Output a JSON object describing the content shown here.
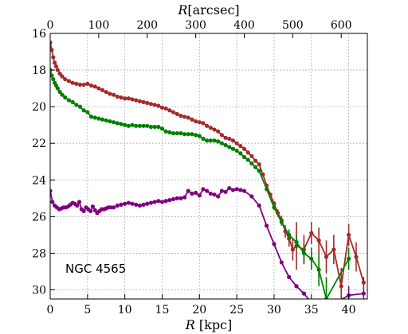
{
  "chart_data": {
    "type": "line",
    "annotation": "NGC 4565",
    "xlabel_main": "R",
    "xlabel_unit": "[kpc]",
    "xlabel_top_main": "R",
    "xlabel_top_unit": "[arcsec]",
    "xlim": [
      0,
      42.5
    ],
    "ylim": [
      30.5,
      16
    ],
    "y_inverted": true,
    "grid": true,
    "x_ticks": [
      0,
      5,
      10,
      15,
      20,
      25,
      30,
      35,
      40
    ],
    "x_tick_labels": [
      "0",
      "5",
      "10",
      "15",
      "20",
      "25",
      "30",
      "35",
      "40"
    ],
    "y_ticks": [
      16,
      18,
      20,
      22,
      24,
      26,
      28,
      30
    ],
    "y_tick_labels": [
      "16",
      "18",
      "20",
      "22",
      "24",
      "26",
      "28",
      "30"
    ],
    "top_ticks_kpc": [
      0,
      6.5,
      13,
      19.5,
      26,
      32.5,
      39
    ],
    "top_tick_labels": [
      "0",
      "100",
      "200",
      "300",
      "400",
      "500",
      "600"
    ],
    "series": [
      {
        "color": "#a52a2a",
        "x": [
          0.0,
          0.2,
          0.4,
          0.6,
          0.8,
          1.0,
          1.3,
          1.6,
          2.0,
          2.5,
          3.0,
          3.5,
          4.0,
          4.5,
          5.0,
          5.5,
          6.0,
          6.5,
          7.0,
          7.5,
          8.0,
          8.5,
          9.0,
          9.5,
          10.0,
          10.5,
          11.0,
          11.5,
          12.0,
          12.5,
          13.0,
          13.5,
          14.0,
          14.5,
          15.0,
          15.5,
          16.0,
          16.5,
          17.0,
          17.5,
          18.0,
          18.5,
          19.0,
          19.5,
          20.0,
          20.5,
          21.0,
          21.5,
          22.0,
          22.5,
          23.0,
          23.5,
          24.0,
          24.5,
          25.0,
          25.5,
          26.0,
          26.5,
          27.0,
          27.5,
          28.0,
          28.5,
          29.0,
          29.5,
          30.0,
          30.5,
          31.0,
          31.5,
          32.0,
          32.5,
          33.0,
          34.0,
          35.0,
          36.0,
          37.0,
          38.0,
          39.0,
          40.0,
          41.0,
          42.0
        ],
        "y": [
          16.5,
          16.9,
          17.3,
          17.6,
          17.8,
          18.0,
          18.2,
          18.35,
          18.5,
          18.6,
          18.7,
          18.75,
          18.8,
          18.8,
          18.75,
          18.85,
          18.9,
          19.0,
          19.1,
          19.2,
          19.3,
          19.35,
          19.45,
          19.5,
          19.55,
          19.55,
          19.6,
          19.65,
          19.7,
          19.75,
          19.8,
          19.85,
          19.9,
          19.95,
          20.05,
          20.1,
          20.2,
          20.3,
          20.4,
          20.5,
          20.55,
          20.6,
          20.7,
          20.8,
          20.85,
          20.9,
          21.05,
          21.15,
          21.25,
          21.35,
          21.55,
          21.7,
          21.75,
          21.85,
          22.0,
          22.15,
          22.3,
          22.5,
          22.7,
          22.95,
          23.15,
          23.7,
          24.3,
          24.8,
          25.3,
          25.8,
          26.2,
          26.8,
          27.2,
          27.8,
          27.6,
          27.8,
          26.9,
          27.3,
          28.2,
          27.8,
          29.8,
          27.0,
          28.2,
          29.6
        ],
        "yerr": [
          0,
          0,
          0,
          0,
          0,
          0,
          0,
          0,
          0,
          0,
          0,
          0,
          0,
          0,
          0,
          0,
          0,
          0,
          0,
          0,
          0,
          0,
          0,
          0,
          0,
          0,
          0,
          0,
          0,
          0,
          0,
          0,
          0,
          0,
          0,
          0,
          0,
          0,
          0,
          0,
          0,
          0,
          0,
          0,
          0,
          0,
          0,
          0,
          0,
          0,
          0,
          0,
          0,
          0,
          0,
          0,
          0,
          0,
          0,
          0,
          0,
          0.05,
          0.08,
          0.1,
          0.15,
          0.2,
          0.25,
          0.35,
          0.45,
          0.6,
          1.3,
          0.8,
          0.6,
          0.7,
          0.9,
          0.8,
          1.0,
          0.6,
          0.8,
          0.3
        ]
      },
      {
        "color": "#008000",
        "x": [
          0.0,
          0.2,
          0.4,
          0.6,
          0.8,
          1.0,
          1.3,
          1.6,
          2.0,
          2.5,
          3.0,
          3.5,
          4.0,
          4.5,
          5.0,
          5.5,
          6.0,
          6.5,
          7.0,
          7.5,
          8.0,
          8.5,
          9.0,
          9.5,
          10.0,
          10.5,
          11.0,
          11.5,
          12.0,
          12.5,
          13.0,
          13.5,
          14.0,
          14.5,
          15.0,
          15.5,
          16.0,
          16.5,
          17.0,
          17.5,
          18.0,
          18.5,
          19.0,
          19.5,
          20.0,
          20.5,
          21.0,
          21.5,
          22.0,
          22.5,
          23.0,
          23.5,
          24.0,
          24.5,
          25.0,
          25.5,
          26.0,
          26.5,
          27.0,
          27.5,
          28.0,
          29.0,
          30.0,
          31.0,
          32.0,
          33.0,
          34.0,
          35.0,
          36.0,
          37.0,
          40.0
        ],
        "y": [
          18.0,
          18.3,
          18.5,
          18.7,
          18.85,
          19.0,
          19.2,
          19.35,
          19.5,
          19.65,
          19.75,
          19.9,
          20.0,
          20.2,
          20.3,
          20.55,
          20.6,
          20.65,
          20.7,
          20.75,
          20.8,
          20.85,
          20.9,
          20.95,
          21.0,
          21.05,
          21.0,
          21.05,
          21.05,
          21.05,
          21.05,
          21.1,
          21.1,
          21.1,
          21.2,
          21.35,
          21.4,
          21.45,
          21.45,
          21.45,
          21.5,
          21.5,
          21.5,
          21.55,
          21.6,
          21.75,
          21.85,
          21.85,
          21.85,
          21.9,
          22.0,
          22.1,
          22.2,
          22.3,
          22.4,
          22.55,
          22.75,
          22.9,
          23.1,
          23.3,
          23.5,
          24.5,
          25.5,
          26.3,
          27.0,
          27.4,
          28.0,
          28.3,
          28.9,
          30.5,
          28.3
        ],
        "yerr": [
          0,
          0,
          0,
          0,
          0,
          0,
          0,
          0,
          0,
          0,
          0,
          0,
          0,
          0,
          0,
          0,
          0,
          0,
          0,
          0,
          0,
          0,
          0,
          0,
          0,
          0,
          0,
          0,
          0,
          0,
          0,
          0,
          0,
          0,
          0,
          0,
          0,
          0,
          0,
          0,
          0,
          0,
          0,
          0,
          0,
          0,
          0,
          0,
          0,
          0,
          0,
          0,
          0,
          0,
          0,
          0,
          0,
          0,
          0,
          0,
          0.05,
          0.1,
          0.15,
          0.2,
          0.3,
          0.4,
          0.5,
          0.6,
          0.9,
          1.2,
          0.6
        ]
      },
      {
        "color": "#800080",
        "x": [
          0.0,
          0.3,
          0.6,
          0.9,
          1.2,
          1.5,
          1.8,
          2.1,
          2.4,
          2.7,
          3.0,
          3.3,
          3.6,
          3.9,
          4.2,
          4.5,
          4.8,
          5.1,
          5.4,
          5.7,
          6.0,
          6.3,
          6.6,
          6.9,
          7.2,
          7.5,
          7.8,
          8.1,
          8.5,
          9.0,
          9.5,
          10.0,
          10.5,
          11.0,
          11.5,
          12.0,
          12.5,
          13.0,
          13.5,
          14.0,
          14.5,
          15.0,
          15.5,
          16.0,
          16.5,
          17.0,
          17.5,
          18.0,
          18.5,
          19.0,
          19.5,
          20.0,
          20.5,
          21.0,
          21.5,
          22.0,
          22.5,
          23.0,
          23.5,
          24.0,
          24.5,
          25.0,
          25.5,
          26.0,
          27.0,
          28.0,
          29.0,
          30.0,
          31.0,
          32.0,
          33.0,
          34.0,
          35.0,
          36.0,
          37.0,
          40.0,
          42.0
        ],
        "y": [
          24.6,
          25.2,
          25.4,
          25.5,
          25.6,
          25.55,
          25.5,
          25.5,
          25.45,
          25.35,
          25.25,
          25.3,
          25.4,
          25.2,
          25.6,
          25.7,
          25.5,
          25.6,
          25.7,
          25.45,
          25.65,
          25.8,
          25.7,
          25.6,
          25.6,
          25.55,
          25.5,
          25.5,
          25.5,
          25.4,
          25.35,
          25.3,
          25.25,
          25.3,
          25.35,
          25.4,
          25.35,
          25.3,
          25.25,
          25.2,
          25.15,
          25.2,
          25.15,
          25.1,
          25.05,
          25.0,
          25.0,
          24.95,
          24.6,
          24.75,
          24.7,
          24.85,
          24.5,
          24.6,
          24.75,
          24.8,
          24.9,
          24.6,
          24.65,
          24.45,
          24.55,
          24.5,
          24.55,
          24.6,
          24.9,
          25.4,
          26.5,
          27.5,
          28.5,
          29.3,
          29.8,
          30.2,
          30.7,
          31.0,
          31.0,
          30.3,
          30.2
        ],
        "yerr": [
          0,
          0,
          0,
          0,
          0,
          0,
          0,
          0,
          0,
          0,
          0,
          0,
          0,
          0,
          0,
          0,
          0,
          0,
          0,
          0,
          0,
          0,
          0,
          0,
          0,
          0,
          0,
          0,
          0,
          0,
          0,
          0,
          0,
          0,
          0,
          0,
          0,
          0,
          0,
          0,
          0,
          0,
          0,
          0,
          0,
          0,
          0,
          0,
          0,
          0,
          0,
          0,
          0,
          0,
          0,
          0,
          0,
          0,
          0,
          0,
          0,
          0,
          0,
          0,
          0,
          0,
          0,
          0,
          0,
          0,
          0,
          0,
          0,
          0,
          0,
          0.5,
          0.3
        ]
      }
    ]
  }
}
